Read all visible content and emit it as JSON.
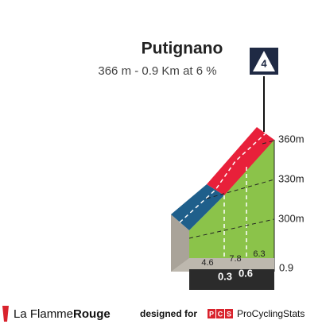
{
  "header": {
    "title": "Putignano",
    "subtitle": "366 m - 0.9 Km at 6 %",
    "category": 4
  },
  "profile": {
    "elevation_labels": [
      "360m",
      "330m",
      "300m"
    ],
    "gradients": [
      4.6,
      7.8,
      6.3
    ],
    "distances": [
      0.3,
      0.6
    ],
    "total_distance": 0.9
  },
  "footer": {
    "brand_light": "La Flamme",
    "brand_bold": "Rouge",
    "designed_for": "designed for",
    "pcs_letters": [
      "P",
      "C",
      "S"
    ],
    "site": "ProCyclingStats"
  }
}
